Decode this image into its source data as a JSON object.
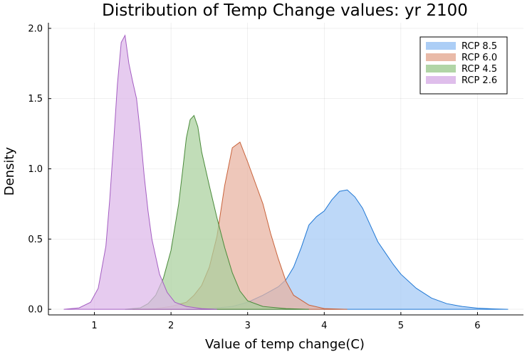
{
  "chart_data": {
    "type": "area",
    "title": "Distribution of Temp Change values: yr 2100",
    "xlabel": "Value of temp change(C)",
    "ylabel": "Density",
    "xlim": [
      0.4,
      6.6
    ],
    "ylim": [
      -0.04,
      2.04
    ],
    "xticks": [
      1,
      2,
      3,
      4,
      5,
      6
    ],
    "yticks": [
      0.0,
      0.5,
      1.0,
      1.5,
      2.0
    ],
    "xtick_labels": [
      "1",
      "2",
      "3",
      "4",
      "5",
      "6"
    ],
    "ytick_labels": [
      "0.0",
      "0.5",
      "1.0",
      "1.5",
      "2.0"
    ],
    "grid": true,
    "legend_position": "top-right",
    "series": [
      {
        "name": "RCP 8.5",
        "color": "#1f77d4",
        "fill": "#a3c9f5",
        "x": [
          2.2,
          2.5,
          2.8,
          3.0,
          3.2,
          3.4,
          3.5,
          3.6,
          3.7,
          3.8,
          3.9,
          4.0,
          4.1,
          4.2,
          4.3,
          4.4,
          4.5,
          4.6,
          4.7,
          4.8,
          4.9,
          5.0,
          5.2,
          5.4,
          5.6,
          5.8,
          6.0,
          6.2,
          6.4
        ],
        "y": [
          0.0,
          0.005,
          0.02,
          0.05,
          0.1,
          0.16,
          0.21,
          0.3,
          0.44,
          0.6,
          0.66,
          0.7,
          0.78,
          0.84,
          0.85,
          0.8,
          0.72,
          0.6,
          0.48,
          0.4,
          0.32,
          0.25,
          0.15,
          0.08,
          0.04,
          0.02,
          0.008,
          0.003,
          0.0
        ]
      },
      {
        "name": "RCP 6.0",
        "color": "#c8623a",
        "fill": "#e7b29f",
        "x": [
          1.5,
          1.8,
          2.0,
          2.2,
          2.3,
          2.4,
          2.5,
          2.6,
          2.7,
          2.8,
          2.9,
          3.0,
          3.1,
          3.2,
          3.3,
          3.4,
          3.5,
          3.6,
          3.8,
          4.0,
          4.3
        ],
        "y": [
          0.0,
          0.005,
          0.02,
          0.05,
          0.1,
          0.17,
          0.3,
          0.52,
          0.88,
          1.15,
          1.19,
          1.05,
          0.9,
          0.75,
          0.54,
          0.36,
          0.2,
          0.1,
          0.03,
          0.005,
          0.0
        ]
      },
      {
        "name": "RCP 4.5",
        "color": "#4a8a3a",
        "fill": "#a9d09c",
        "x": [
          1.4,
          1.6,
          1.7,
          1.8,
          1.9,
          2.0,
          2.1,
          2.15,
          2.2,
          2.25,
          2.3,
          2.35,
          2.4,
          2.5,
          2.6,
          2.7,
          2.8,
          2.9,
          3.0,
          3.2,
          3.5,
          3.8
        ],
        "y": [
          0.0,
          0.01,
          0.04,
          0.1,
          0.22,
          0.42,
          0.75,
          0.98,
          1.22,
          1.35,
          1.38,
          1.3,
          1.12,
          0.88,
          0.65,
          0.44,
          0.26,
          0.13,
          0.06,
          0.02,
          0.005,
          0.0
        ]
      },
      {
        "name": "RCP 2.6",
        "color": "#a45ec2",
        "fill": "#dcb7e9",
        "x": [
          0.6,
          0.8,
          0.95,
          1.05,
          1.15,
          1.2,
          1.25,
          1.3,
          1.35,
          1.4,
          1.45,
          1.5,
          1.55,
          1.6,
          1.65,
          1.7,
          1.75,
          1.85,
          1.95,
          2.05,
          2.2,
          2.4,
          2.6
        ],
        "y": [
          0.0,
          0.01,
          0.05,
          0.15,
          0.45,
          0.78,
          1.18,
          1.6,
          1.9,
          1.95,
          1.75,
          1.62,
          1.5,
          1.25,
          0.95,
          0.7,
          0.5,
          0.25,
          0.12,
          0.05,
          0.02,
          0.005,
          0.0
        ]
      }
    ]
  }
}
